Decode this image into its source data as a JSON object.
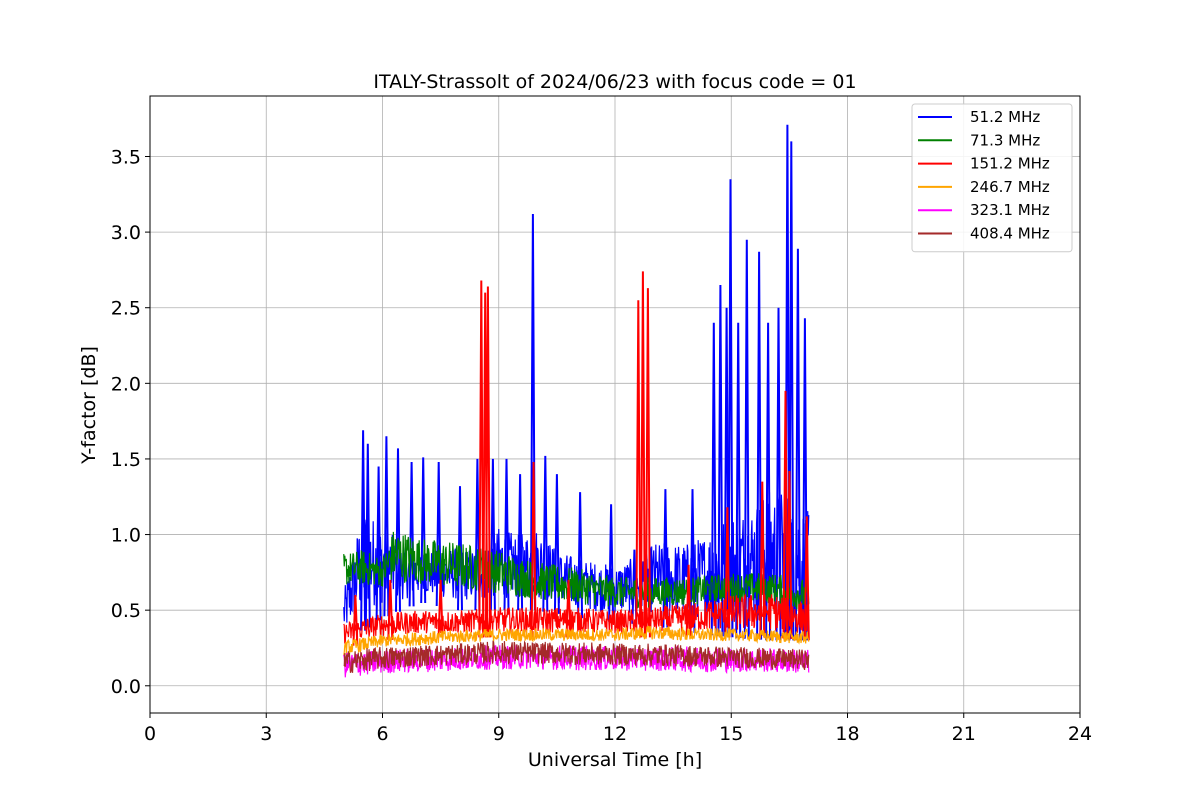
{
  "chart_data": {
    "type": "line",
    "title": "ITALY-Strassolt of 2024/06/23 with focus code = 01",
    "xlabel": "Universal Time [h]",
    "ylabel": "Y-factor [dB]",
    "xlim": [
      0,
      24
    ],
    "ylim": [
      -0.18,
      3.9
    ],
    "xticks": [
      0,
      3,
      6,
      9,
      12,
      15,
      18,
      21,
      24
    ],
    "xtick_labels": [
      "0",
      "3",
      "6",
      "9",
      "12",
      "15",
      "18",
      "21",
      "24"
    ],
    "yticks": [
      0.0,
      0.5,
      1.0,
      1.5,
      2.0,
      2.5,
      3.0,
      3.5
    ],
    "ytick_labels": [
      "0.0",
      "0.5",
      "1.0",
      "1.5",
      "2.0",
      "2.5",
      "3.0",
      "3.5"
    ],
    "grid": true,
    "legend_position": "top-right",
    "series": [
      {
        "name": "51.2 MHz",
        "legend_label": "  51.2 MHz",
        "color": "#0000ff",
        "band_upper": [
          [
            5.0,
            0.62
          ],
          [
            5.5,
            1.2
          ],
          [
            6.0,
            1.05
          ],
          [
            6.5,
            0.95
          ],
          [
            7.0,
            0.9
          ],
          [
            7.5,
            0.9
          ],
          [
            8.0,
            0.92
          ],
          [
            8.5,
            0.9
          ],
          [
            9.0,
            1.05
          ],
          [
            9.5,
            1.0
          ],
          [
            10.0,
            1.05
          ],
          [
            10.5,
            0.9
          ],
          [
            11.0,
            0.85
          ],
          [
            11.5,
            0.82
          ],
          [
            12.0,
            0.8
          ],
          [
            12.5,
            0.85
          ],
          [
            13.0,
            0.95
          ],
          [
            13.5,
            0.95
          ],
          [
            14.0,
            0.95
          ],
          [
            14.5,
            1.05
          ],
          [
            15.0,
            1.15
          ],
          [
            15.5,
            1.2
          ],
          [
            16.0,
            1.3
          ],
          [
            16.5,
            1.3
          ],
          [
            17.0,
            1.15
          ]
        ],
        "band_lower": [
          [
            5.0,
            0.28
          ],
          [
            6.0,
            0.45
          ],
          [
            7.0,
            0.55
          ],
          [
            8.0,
            0.5
          ],
          [
            9.0,
            0.5
          ],
          [
            10.0,
            0.5
          ],
          [
            11.0,
            0.45
          ],
          [
            12.0,
            0.42
          ],
          [
            13.0,
            0.4
          ],
          [
            14.0,
            0.35
          ],
          [
            15.0,
            0.32
          ],
          [
            16.0,
            0.3
          ],
          [
            17.0,
            0.3
          ]
        ],
        "spikes": [
          [
            5.5,
            1.69
          ],
          [
            5.62,
            1.6
          ],
          [
            5.9,
            1.45
          ],
          [
            6.1,
            1.65
          ],
          [
            6.4,
            1.57
          ],
          [
            6.75,
            1.48
          ],
          [
            7.05,
            1.51
          ],
          [
            7.45,
            1.48
          ],
          [
            8.0,
            1.32
          ],
          [
            8.45,
            1.5
          ],
          [
            8.85,
            1.5
          ],
          [
            9.2,
            1.5
          ],
          [
            9.55,
            1.4
          ],
          [
            9.88,
            3.12
          ],
          [
            10.2,
            1.52
          ],
          [
            10.5,
            1.4
          ],
          [
            11.1,
            1.28
          ],
          [
            11.9,
            1.2
          ],
          [
            12.5,
            0.9
          ],
          [
            13.3,
            1.3
          ],
          [
            14.0,
            1.3
          ],
          [
            14.55,
            2.4
          ],
          [
            14.72,
            2.65
          ],
          [
            14.88,
            2.5
          ],
          [
            14.98,
            3.35
          ],
          [
            15.18,
            2.4
          ],
          [
            15.4,
            2.95
          ],
          [
            15.72,
            2.87
          ],
          [
            15.95,
            2.4
          ],
          [
            16.22,
            2.5
          ],
          [
            16.45,
            3.71
          ],
          [
            16.55,
            3.6
          ],
          [
            16.72,
            2.89
          ],
          [
            16.9,
            2.43
          ]
        ]
      },
      {
        "name": "71.3 MHz",
        "legend_label": "  71.3 MHz",
        "color": "#008000",
        "band_upper": [
          [
            5.0,
            0.88
          ],
          [
            5.5,
            0.9
          ],
          [
            6.0,
            0.85
          ],
          [
            6.3,
            1.05
          ],
          [
            7.0,
            0.98
          ],
          [
            8.0,
            0.95
          ],
          [
            9.0,
            0.9
          ],
          [
            10.0,
            0.82
          ],
          [
            11.0,
            0.78
          ],
          [
            12.0,
            0.72
          ],
          [
            13.0,
            0.72
          ],
          [
            14.0,
            0.72
          ],
          [
            15.0,
            0.75
          ],
          [
            16.0,
            0.75
          ],
          [
            17.0,
            0.7
          ]
        ],
        "band_lower": [
          [
            5.0,
            0.62
          ],
          [
            6.0,
            0.62
          ],
          [
            7.0,
            0.62
          ],
          [
            8.0,
            0.58
          ],
          [
            9.0,
            0.56
          ],
          [
            10.0,
            0.52
          ],
          [
            11.0,
            0.5
          ],
          [
            12.0,
            0.48
          ],
          [
            13.0,
            0.48
          ],
          [
            14.0,
            0.5
          ],
          [
            15.0,
            0.52
          ],
          [
            16.0,
            0.5
          ],
          [
            17.0,
            0.45
          ]
        ],
        "spikes": []
      },
      {
        "name": "151.2 MHz",
        "legend_label": "151.2 MHz",
        "color": "#ff0000",
        "band_upper": [
          [
            5.0,
            0.42
          ],
          [
            6.0,
            0.48
          ],
          [
            7.0,
            0.5
          ],
          [
            8.0,
            0.5
          ],
          [
            9.0,
            0.52
          ],
          [
            10.0,
            0.52
          ],
          [
            11.0,
            0.52
          ],
          [
            12.0,
            0.5
          ],
          [
            13.0,
            0.52
          ],
          [
            14.0,
            0.55
          ],
          [
            15.0,
            0.6
          ],
          [
            16.0,
            0.62
          ],
          [
            17.0,
            0.55
          ]
        ],
        "band_lower": [
          [
            5.0,
            0.25
          ],
          [
            6.0,
            0.3
          ],
          [
            7.0,
            0.32
          ],
          [
            8.0,
            0.32
          ],
          [
            9.0,
            0.32
          ],
          [
            10.0,
            0.32
          ],
          [
            11.0,
            0.32
          ],
          [
            12.0,
            0.32
          ],
          [
            13.0,
            0.32
          ],
          [
            14.0,
            0.32
          ],
          [
            15.0,
            0.32
          ],
          [
            16.0,
            0.32
          ],
          [
            17.0,
            0.3
          ]
        ],
        "spikes": [
          [
            5.3,
            0.6
          ],
          [
            6.2,
            0.7
          ],
          [
            7.5,
            0.7
          ],
          [
            8.55,
            2.68
          ],
          [
            8.65,
            2.6
          ],
          [
            8.72,
            2.64
          ],
          [
            9.9,
            1.48
          ],
          [
            10.8,
            0.7
          ],
          [
            12.6,
            2.55
          ],
          [
            12.72,
            2.74
          ],
          [
            12.85,
            2.63
          ],
          [
            13.9,
            0.8
          ],
          [
            14.9,
            1.18
          ],
          [
            15.8,
            1.35
          ],
          [
            16.4,
            1.95
          ],
          [
            16.5,
            1.42
          ],
          [
            16.95,
            1.12
          ]
        ]
      },
      {
        "name": "246.7 MHz",
        "legend_label": "246.7 MHz",
        "color": "#ffa500",
        "band_upper": [
          [
            5.0,
            0.3
          ],
          [
            6.0,
            0.34
          ],
          [
            7.0,
            0.36
          ],
          [
            8.0,
            0.37
          ],
          [
            9.0,
            0.38
          ],
          [
            10.0,
            0.38
          ],
          [
            11.0,
            0.38
          ],
          [
            12.0,
            0.38
          ],
          [
            13.0,
            0.4
          ],
          [
            14.0,
            0.38
          ],
          [
            15.0,
            0.38
          ],
          [
            16.0,
            0.37
          ],
          [
            17.0,
            0.36
          ]
        ],
        "band_lower": [
          [
            5.0,
            0.18
          ],
          [
            6.0,
            0.24
          ],
          [
            7.0,
            0.25
          ],
          [
            8.0,
            0.27
          ],
          [
            9.0,
            0.28
          ],
          [
            10.0,
            0.28
          ],
          [
            11.0,
            0.28
          ],
          [
            12.0,
            0.28
          ],
          [
            13.0,
            0.29
          ],
          [
            14.0,
            0.28
          ],
          [
            15.0,
            0.28
          ],
          [
            16.0,
            0.27
          ],
          [
            17.0,
            0.26
          ]
        ],
        "spikes": []
      },
      {
        "name": "323.1 MHz",
        "legend_label": "323.1 MHz",
        "color": "#ff00ff",
        "band_upper": [
          [
            5.0,
            0.22
          ],
          [
            6.0,
            0.24
          ],
          [
            7.0,
            0.25
          ],
          [
            8.0,
            0.26
          ],
          [
            9.0,
            0.27
          ],
          [
            10.0,
            0.27
          ],
          [
            11.0,
            0.27
          ],
          [
            12.0,
            0.26
          ],
          [
            13.0,
            0.26
          ],
          [
            14.0,
            0.26
          ],
          [
            15.0,
            0.25
          ],
          [
            16.0,
            0.25
          ],
          [
            17.0,
            0.24
          ]
        ],
        "band_lower": [
          [
            5.0,
            0.02
          ],
          [
            6.0,
            0.05
          ],
          [
            7.0,
            0.06
          ],
          [
            8.0,
            0.07
          ],
          [
            9.0,
            0.08
          ],
          [
            10.0,
            0.08
          ],
          [
            11.0,
            0.07
          ],
          [
            12.0,
            0.07
          ],
          [
            13.0,
            0.07
          ],
          [
            14.0,
            0.06
          ],
          [
            15.0,
            0.06
          ],
          [
            16.0,
            0.06
          ],
          [
            17.0,
            0.05
          ]
        ],
        "spikes": []
      },
      {
        "name": "408.4 MHz",
        "legend_label": "408.4 MHz",
        "color": "#a52a2a",
        "band_upper": [
          [
            5.0,
            0.23
          ],
          [
            6.0,
            0.26
          ],
          [
            7.0,
            0.27
          ],
          [
            8.0,
            0.28
          ],
          [
            9.0,
            0.3
          ],
          [
            10.0,
            0.29
          ],
          [
            11.0,
            0.29
          ],
          [
            12.0,
            0.28
          ],
          [
            13.0,
            0.28
          ],
          [
            14.0,
            0.27
          ],
          [
            15.0,
            0.26
          ],
          [
            16.0,
            0.25
          ],
          [
            17.0,
            0.24
          ]
        ],
        "band_lower": [
          [
            5.0,
            0.05
          ],
          [
            6.0,
            0.08
          ],
          [
            7.0,
            0.1
          ],
          [
            8.0,
            0.11
          ],
          [
            9.0,
            0.12
          ],
          [
            10.0,
            0.12
          ],
          [
            11.0,
            0.11
          ],
          [
            12.0,
            0.11
          ],
          [
            13.0,
            0.1
          ],
          [
            14.0,
            0.1
          ],
          [
            15.0,
            0.09
          ],
          [
            16.0,
            0.09
          ],
          [
            17.0,
            0.08
          ]
        ],
        "spikes": []
      }
    ]
  }
}
